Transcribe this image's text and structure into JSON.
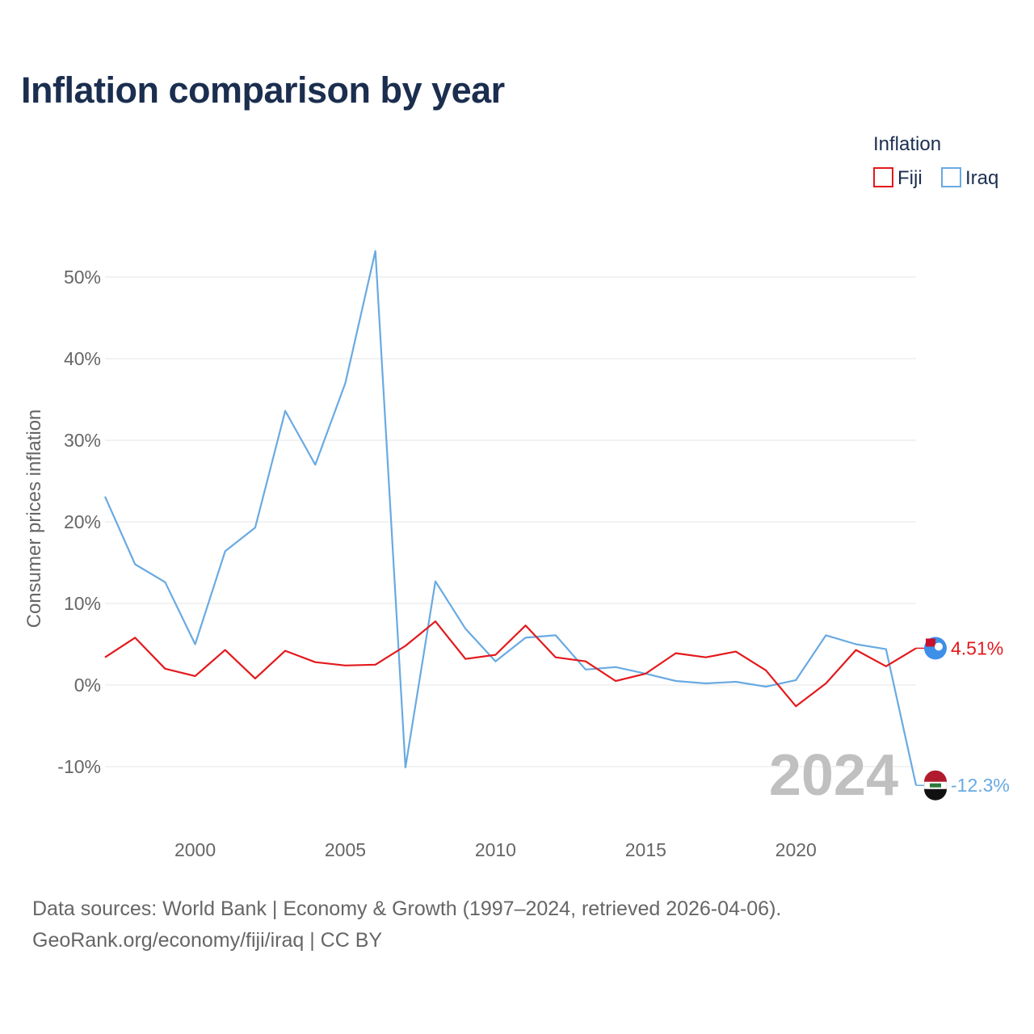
{
  "chart_data": {
    "type": "line",
    "title": "Inflation comparison by year",
    "ylabel": "Consumer prices inflation",
    "xlabel": "",
    "legend": {
      "title": "Inflation",
      "position": "top-right"
    },
    "x": [
      1997,
      1998,
      1999,
      2000,
      2001,
      2002,
      2003,
      2004,
      2005,
      2006,
      2007,
      2008,
      2009,
      2010,
      2011,
      2012,
      2013,
      2014,
      2015,
      2016,
      2017,
      2018,
      2019,
      2020,
      2021,
      2022,
      2023,
      2024
    ],
    "series": [
      {
        "name": "Fiji",
        "color": "#e3191c",
        "values": [
          3.4,
          5.8,
          2.0,
          1.1,
          4.3,
          0.8,
          4.2,
          2.8,
          2.4,
          2.5,
          4.8,
          7.8,
          3.2,
          3.7,
          7.3,
          3.4,
          2.9,
          0.5,
          1.4,
          3.9,
          3.4,
          4.1,
          1.8,
          -2.6,
          0.2,
          4.3,
          2.3,
          4.51
        ]
      },
      {
        "name": "Iraq",
        "color": "#69aae2",
        "values": [
          23.1,
          14.8,
          12.6,
          5.0,
          16.4,
          19.3,
          33.6,
          27.0,
          37.0,
          53.2,
          -10.1,
          12.7,
          6.9,
          2.9,
          5.8,
          6.1,
          1.9,
          2.2,
          1.4,
          0.5,
          0.2,
          0.4,
          -0.2,
          0.6,
          6.1,
          5.0,
          4.4,
          -12.3
        ]
      }
    ],
    "end_labels": {
      "fiji": "4.51%",
      "iraq": "-12.3%"
    },
    "year_watermark": "2024",
    "xticks": [
      2000,
      2005,
      2010,
      2015,
      2020
    ],
    "yticks": [
      -10,
      0,
      10,
      20,
      30,
      40,
      50
    ],
    "ytick_labels": [
      "-10%",
      "0%",
      "10%",
      "20%",
      "30%",
      "40%",
      "50%"
    ],
    "xlim": [
      1997,
      2024
    ],
    "ylim": [
      -12.3,
      53.2
    ],
    "grid": true
  },
  "source": {
    "line1": "Data sources: World Bank | Economy & Growth (1997–2024, retrieved 2026-04-06).",
    "line2": "GeoRank.org/economy/fiji/iraq | CC BY"
  }
}
